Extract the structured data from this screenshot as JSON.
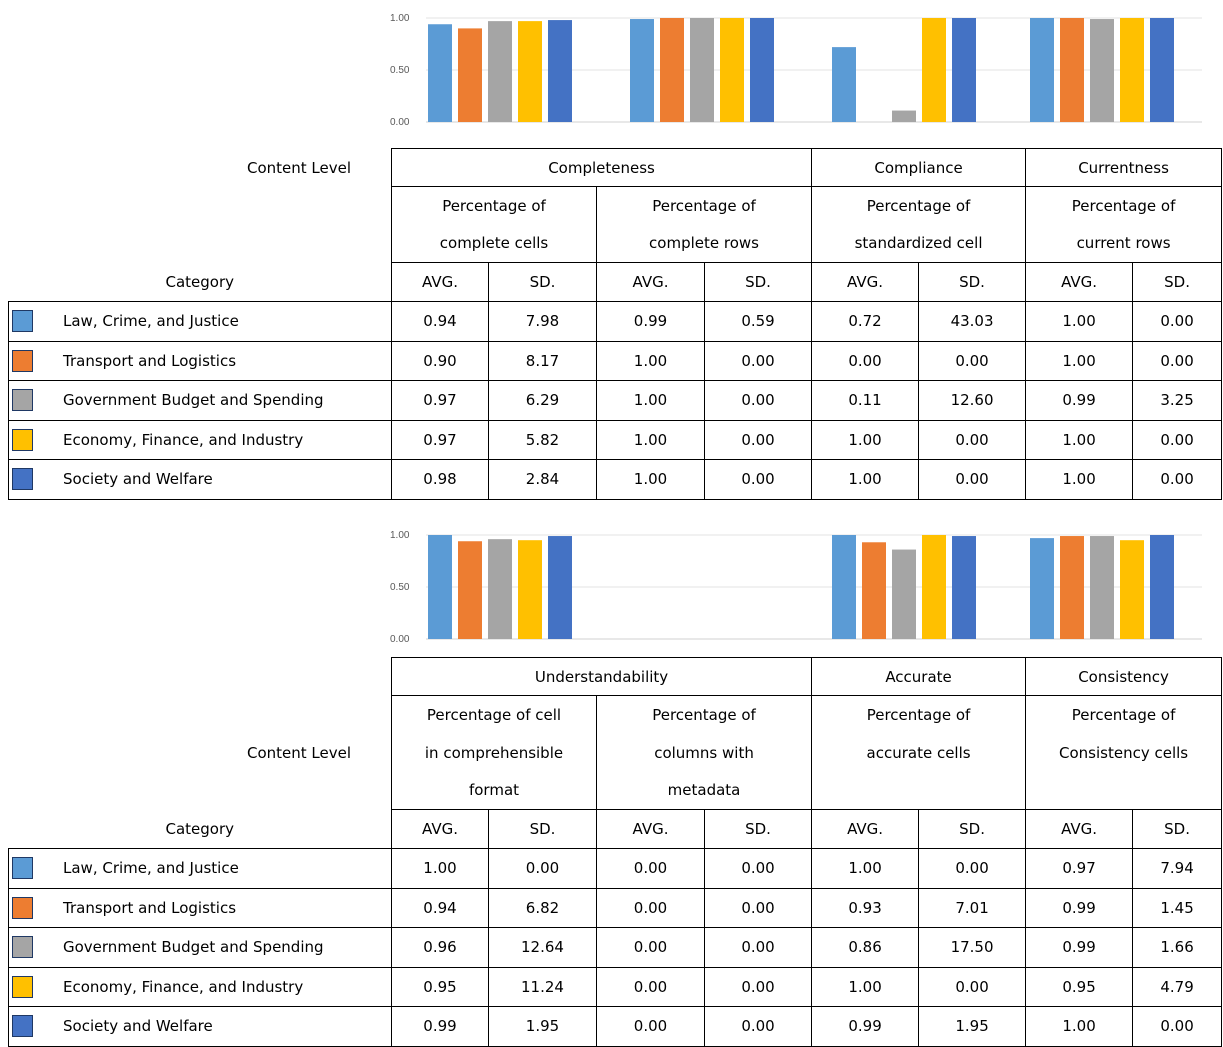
{
  "categories": [
    {
      "name": "Law, Crime, and Justice",
      "color": "#5b9bd5"
    },
    {
      "name": "Transport and Logistics",
      "color": "#ed7d31"
    },
    {
      "name": "Government Budget and Spending",
      "color": "#a5a5a5"
    },
    {
      "name": "Economy, Finance, and Industry",
      "color": "#ffc000"
    },
    {
      "name": "Society and Welfare",
      "color": "#4472c4"
    }
  ],
  "chart_data": [
    {
      "type": "bar",
      "ylim": [
        0,
        1
      ],
      "yticks": [
        "1.00",
        "0.50",
        "0.00"
      ],
      "grid": true,
      "categories": [
        "Percentage of complete cells",
        "Percentage of complete rows",
        "Percentage of standardized cell",
        "Percentage of current rows"
      ],
      "series": [
        {
          "name": "Law, Crime, and Justice",
          "values": [
            0.94,
            0.99,
            0.72,
            1.0
          ]
        },
        {
          "name": "Transport and Logistics",
          "values": [
            0.9,
            1.0,
            0.0,
            1.0
          ]
        },
        {
          "name": "Government Budget and Spending",
          "values": [
            0.97,
            1.0,
            0.11,
            0.99
          ]
        },
        {
          "name": "Economy, Finance, and Industry",
          "values": [
            0.97,
            1.0,
            1.0,
            1.0
          ]
        },
        {
          "name": "Society and Welfare",
          "values": [
            0.98,
            1.0,
            1.0,
            1.0
          ]
        }
      ]
    },
    {
      "type": "bar",
      "ylim": [
        0,
        1
      ],
      "yticks": [
        "1.00",
        "0.50",
        "0.00"
      ],
      "grid": true,
      "categories": [
        "Percentage of cell in comprehensible format",
        "Percentage of columns with metadata",
        "Percentage of accurate cells",
        "Percentage of Consistency cells"
      ],
      "series": [
        {
          "name": "Law, Crime, and Justice",
          "values": [
            1.0,
            0.0,
            1.0,
            0.97
          ]
        },
        {
          "name": "Transport and Logistics",
          "values": [
            0.94,
            0.0,
            0.93,
            0.99
          ]
        },
        {
          "name": "Government Budget and Spending",
          "values": [
            0.96,
            0.0,
            0.86,
            0.99
          ]
        },
        {
          "name": "Economy, Finance, and Industry",
          "values": [
            0.95,
            0.0,
            1.0,
            0.95
          ]
        },
        {
          "name": "Society and Welfare",
          "values": [
            0.99,
            0.0,
            0.99,
            1.0
          ]
        }
      ]
    }
  ],
  "table1": {
    "content_level": "Content Level",
    "category_label": "Category",
    "groups": [
      "Completeness",
      "Compliance",
      "Currentness"
    ],
    "metrics": [
      {
        "line1": "Percentage of",
        "line2": "complete cells"
      },
      {
        "line1": "Percentage of",
        "line2": "complete rows"
      },
      {
        "line1": "Percentage of",
        "line2": "standardized cell"
      },
      {
        "line1": "Percentage of",
        "line2": "current rows"
      }
    ],
    "avg": "AVG.",
    "sd": "SD.",
    "rows": [
      [
        "0.94",
        "7.98",
        "0.99",
        "0.59",
        "0.72",
        "43.03",
        "1.00",
        "0.00"
      ],
      [
        "0.90",
        "8.17",
        "1.00",
        "0.00",
        "0.00",
        "0.00",
        "1.00",
        "0.00"
      ],
      [
        "0.97",
        "6.29",
        "1.00",
        "0.00",
        "0.11",
        "12.60",
        "0.99",
        "3.25"
      ],
      [
        "0.97",
        "5.82",
        "1.00",
        "0.00",
        "1.00",
        "0.00",
        "1.00",
        "0.00"
      ],
      [
        "0.98",
        "2.84",
        "1.00",
        "0.00",
        "1.00",
        "0.00",
        "1.00",
        "0.00"
      ]
    ]
  },
  "table2": {
    "content_level": "Content Level",
    "category_label": "Category",
    "groups": [
      "Understandability",
      "Accurate",
      "Consistency"
    ],
    "metrics": [
      {
        "line1": "Percentage of  cell",
        "line2": "in comprehensible",
        "line3": "format"
      },
      {
        "line1": "Percentage of",
        "line2": "columns with",
        "line3": "metadata"
      },
      {
        "line1": "Percentage of",
        "line2": "accurate cells",
        "line3": ""
      },
      {
        "line1": "Percentage of",
        "line2": "Consistency cells",
        "line3": ""
      }
    ],
    "avg": "AVG.",
    "sd": "SD.",
    "rows": [
      [
        "1.00",
        "0.00",
        "0.00",
        "0.00",
        "1.00",
        "0.00",
        "0.97",
        "7.94"
      ],
      [
        "0.94",
        "6.82",
        "0.00",
        "0.00",
        "0.93",
        "7.01",
        "0.99",
        "1.45"
      ],
      [
        "0.96",
        "12.64",
        "0.00",
        "0.00",
        "0.86",
        "17.50",
        "0.99",
        "1.66"
      ],
      [
        "0.95",
        "11.24",
        "0.00",
        "0.00",
        "1.00",
        "0.00",
        "0.95",
        "4.79"
      ],
      [
        "0.99",
        "1.95",
        "0.00",
        "0.00",
        "0.99",
        "1.95",
        "1.00",
        "0.00"
      ]
    ]
  }
}
